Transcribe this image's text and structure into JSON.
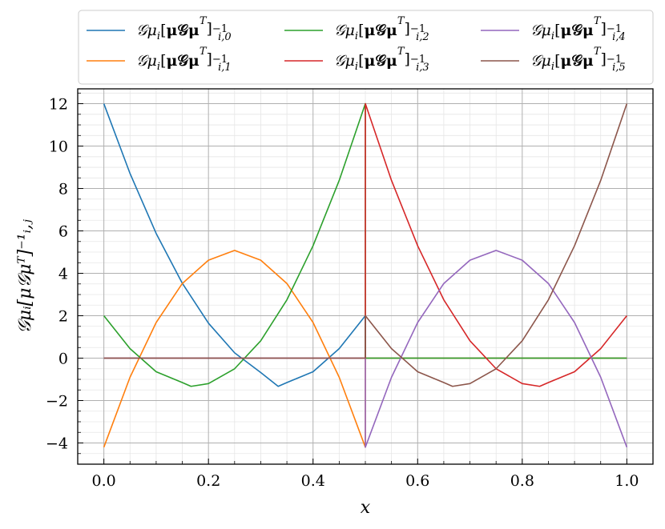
{
  "chart_data": {
    "type": "line",
    "xlabel": "x",
    "ylabel": "𝒢μᵢ[μ𝒢μᵀ]⁻¹ᵢ,ⱼ",
    "xlim": [
      -0.05,
      1.05
    ],
    "ylim": [
      -5,
      12.7
    ],
    "x_ticks": [
      "0.0",
      "0.2",
      "0.4",
      "0.6",
      "0.8",
      "1.0"
    ],
    "y_ticks": [
      "−4",
      "−2",
      "0",
      "2",
      "4",
      "6",
      "8",
      "10",
      "12"
    ],
    "grid": true,
    "legend_position": "top",
    "series": [
      {
        "name": "𝒢μᵢ[μ𝒢μᵀ]⁻¹ᵢ,₀",
        "legend_sub": "i,0",
        "color": "#1f77b4",
        "x": [
          0.0,
          0.05,
          0.1,
          0.15,
          0.2,
          0.25,
          0.3,
          0.3333,
          0.35,
          0.4,
          0.45,
          0.5,
          0.5,
          1.0
        ],
        "y": [
          12.0,
          8.71,
          5.88,
          3.53,
          1.65,
          0.25,
          -0.68,
          -1.33,
          -1.15,
          -0.64,
          0.45,
          2.0,
          0.0,
          0.0
        ]
      },
      {
        "name": "𝒢μᵢ[μ𝒢μᵀ]⁻¹ᵢ,₁",
        "legend_sub": "i,1",
        "color": "#ff7f0e",
        "x": [
          0.0,
          0.05,
          0.1,
          0.15,
          0.2,
          0.25,
          0.3,
          0.35,
          0.4,
          0.45,
          0.5,
          0.5,
          1.0
        ],
        "y": [
          -4.2,
          -0.9,
          1.68,
          3.52,
          4.62,
          5.08,
          4.62,
          3.52,
          1.68,
          -0.9,
          -4.2,
          0.0,
          0.0
        ]
      },
      {
        "name": "𝒢μᵢ[μ𝒢μᵀ]⁻¹ᵢ,₂",
        "legend_sub": "i,2",
        "color": "#2ca02c",
        "x": [
          0.0,
          0.05,
          0.1,
          0.15,
          0.1667,
          0.2,
          0.25,
          0.3,
          0.35,
          0.4,
          0.45,
          0.5,
          0.5,
          1.0
        ],
        "y": [
          2.0,
          0.45,
          -0.64,
          -1.15,
          -1.33,
          -1.2,
          -0.5,
          0.82,
          2.75,
          5.3,
          8.38,
          12.0,
          0.0,
          0.0
        ]
      },
      {
        "name": "𝒢μᵢ[μ𝒢μᵀ]⁻¹ᵢ,₃",
        "legend_sub": "i,3",
        "color": "#d62728",
        "x": [
          0.0,
          0.5,
          0.5,
          0.55,
          0.6,
          0.65,
          0.7,
          0.75,
          0.8,
          0.8333,
          0.85,
          0.9,
          0.95,
          1.0
        ],
        "y": [
          0.0,
          0.0,
          12.0,
          8.38,
          5.3,
          2.75,
          0.82,
          -0.5,
          -1.2,
          -1.33,
          -1.15,
          -0.64,
          0.45,
          2.0
        ]
      },
      {
        "name": "𝒢μᵢ[μ𝒢μᵀ]⁻¹ᵢ,₄",
        "legend_sub": "i,4",
        "color": "#9467bd",
        "x": [
          0.0,
          0.5,
          0.5,
          0.55,
          0.6,
          0.65,
          0.7,
          0.75,
          0.8,
          0.85,
          0.9,
          0.95,
          1.0
        ],
        "y": [
          0.0,
          0.0,
          -4.2,
          -0.9,
          1.68,
          3.52,
          4.62,
          5.08,
          4.62,
          3.52,
          1.68,
          -0.9,
          -4.2
        ]
      },
      {
        "name": "𝒢μᵢ[μ𝒢μᵀ]⁻¹ᵢ,₅",
        "legend_sub": "i,5",
        "color": "#8c564b",
        "x": [
          0.0,
          0.5,
          0.5,
          0.55,
          0.6,
          0.65,
          0.6667,
          0.7,
          0.75,
          0.8,
          0.85,
          0.9,
          0.95,
          1.0
        ],
        "y": [
          0.0,
          0.0,
          2.0,
          0.45,
          -0.64,
          -1.15,
          -1.33,
          -1.2,
          -0.5,
          0.82,
          2.75,
          5.3,
          8.38,
          12.0
        ]
      }
    ]
  }
}
